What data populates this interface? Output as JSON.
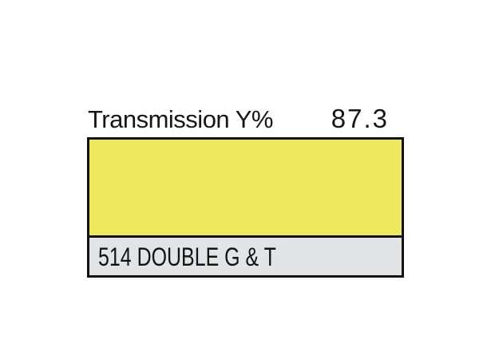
{
  "header": {
    "title": "Transmission Y%",
    "value": "87.3"
  },
  "swatch": {
    "label": "514 DOUBLE G & T",
    "color_hex": "#EDE95E",
    "label_bg_hex": "#E2E4E6",
    "border_hex": "#121212"
  }
}
